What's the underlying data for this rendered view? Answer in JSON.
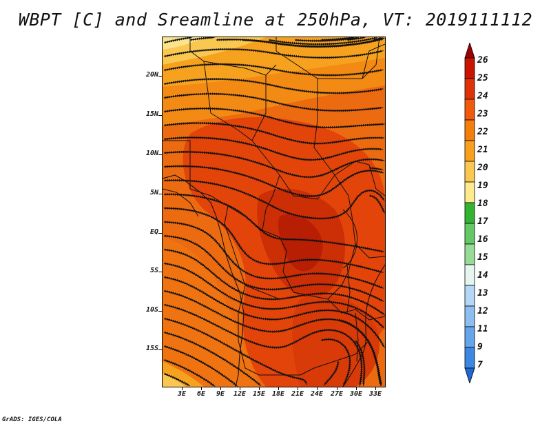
{
  "title": "WBPT [C] and Sreamline at 250hPa, VT: 2019111112",
  "credit": "GrADS: IGES/COLA",
  "map": {
    "latitude_labels": [
      "20N",
      "15N",
      "10N",
      "5N",
      "EQ",
      "5S",
      "10S",
      "15S"
    ],
    "longitude_labels": [
      "3E",
      "6E",
      "9E",
      "12E",
      "15E",
      "18E",
      "21E",
      "24E",
      "27E",
      "30E",
      "33E"
    ],
    "field": "Wet-bulb potential temperature",
    "units": "C",
    "pressure_level": "250hPa",
    "valid_time": "2019111112"
  },
  "colorbar": {
    "labels": [
      "26",
      "25",
      "24",
      "23",
      "22",
      "21",
      "20",
      "19",
      "18",
      "17",
      "16",
      "15",
      "14",
      "13",
      "12",
      "11",
      "9",
      "7"
    ],
    "colors": [
      "#a00000",
      "#c81400",
      "#e0320a",
      "#f05a0a",
      "#f57d0a",
      "#f8a01e",
      "#fac850",
      "#fcea8c",
      "#32b432",
      "#64c864",
      "#96dc96",
      "#e6f5f0",
      "#b4d7f5",
      "#8cbef0",
      "#64a5eb",
      "#3c87e1",
      "#1e69d2"
    ]
  }
}
